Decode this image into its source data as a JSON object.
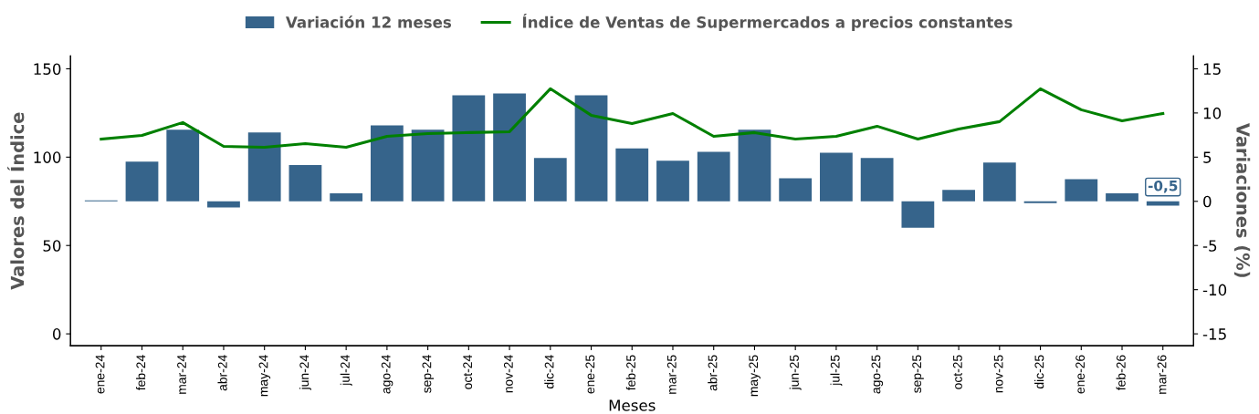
{
  "chart_data": {
    "type": "bar",
    "xlabel": "Meses",
    "ylabel": "Valores del Índice",
    "y2label": "Variaciones (%)",
    "categories": [
      "ene-24",
      "feb-24",
      "mar-24",
      "abr-24",
      "may-24",
      "jun-24",
      "jul-24",
      "ago-24",
      "sep-24",
      "oct-24",
      "nov-24",
      "dic-24",
      "ene-25",
      "feb-25",
      "mar-25",
      "abr-25",
      "may-25",
      "jun-25",
      "jul-25",
      "ago-25",
      "sep-25",
      "oct-25",
      "nov-25",
      "dic-25",
      "ene-26",
      "feb-26",
      "mar-26"
    ],
    "series": [
      {
        "name": "Variación 12 meses",
        "axis": "y2",
        "color": "#36648b",
        "values": [
          0.1,
          4.5,
          8.1,
          -0.7,
          7.8,
          4.1,
          0.9,
          8.6,
          8.1,
          12.0,
          12.2,
          4.9,
          12.0,
          6.0,
          4.6,
          5.6,
          8.1,
          2.6,
          5.5,
          4.9,
          -3.0,
          1.3,
          4.4,
          -0.2,
          2.5,
          0.9,
          -0.5
        ],
        "value_labels": [
          null,
          null,
          null,
          null,
          null,
          null,
          null,
          null,
          null,
          null,
          null,
          null,
          null,
          null,
          null,
          null,
          null,
          null,
          null,
          null,
          null,
          null,
          null,
          null,
          null,
          null,
          "-0,5"
        ]
      },
      {
        "name": "Índice de Ventas de Supermercados a precios constantes",
        "type": "line",
        "axis": "y",
        "color": "#008000",
        "values": [
          110.2,
          112.3,
          119.6,
          106.1,
          105.6,
          107.6,
          105.6,
          111.8,
          113.3,
          113.9,
          114.4,
          138.7,
          123.7,
          119.0,
          124.7,
          111.8,
          113.9,
          110.2,
          111.8,
          117.5,
          110.2,
          115.9,
          120.1,
          138.7,
          126.8,
          120.6,
          124.7
        ]
      }
    ],
    "ylim": [
      -6.7,
      157.3
    ],
    "yticks": [
      0,
      50,
      100,
      150
    ],
    "y2lim": [
      -16.34,
      16.46
    ],
    "y2ticks": [
      {
        "value": -15,
        "label": "-15"
      },
      {
        "value": -10,
        "label": "-10"
      },
      {
        "value": -5,
        "label": "-5"
      },
      0,
      5,
      10,
      15
    ],
    "grid": false,
    "legend": "top",
    "marker": "none",
    "line_style": "solid"
  }
}
